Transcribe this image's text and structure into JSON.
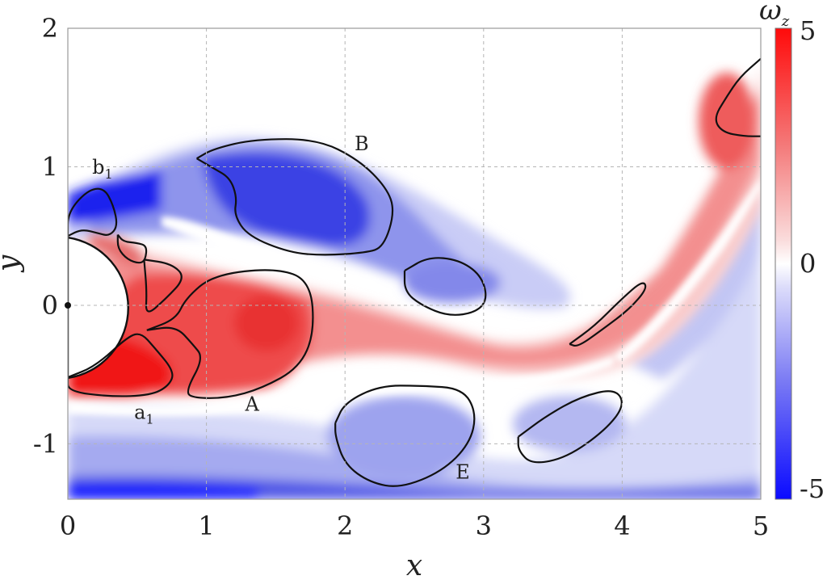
{
  "chart_data": {
    "type": "heatmap",
    "xlabel": "x",
    "ylabel": "y",
    "xlim": [
      0,
      5
    ],
    "ylim": [
      -1.4,
      2
    ],
    "xticks": [
      "0",
      "1",
      "2",
      "3",
      "4",
      "5"
    ],
    "yticks": [
      "-1",
      "0",
      "1",
      "2"
    ],
    "grid": true,
    "colorbar": {
      "label": "ω",
      "label_subscript": "z",
      "range": [
        -5,
        5
      ],
      "ticks": [
        "-5",
        "0",
        "5"
      ],
      "colormap": "blue-white-red",
      "low_color": "#0a0aff",
      "mid_color": "#ffffff",
      "high_color": "#ff0a0a"
    },
    "annotations": [
      {
        "text": "A",
        "x": 1.33,
        "y": -0.76
      },
      {
        "text": "B",
        "x": 2.12,
        "y": 1.12
      },
      {
        "text": "E",
        "x": 2.85,
        "y": -1.25
      },
      {
        "text": "a",
        "sub": "1",
        "x": 0.55,
        "y": -0.82
      },
      {
        "text": "b",
        "sub": "1",
        "x": 0.25,
        "y": 0.95
      }
    ],
    "contours": [
      {
        "name": "A",
        "points": [
          [
            0.57,
            -0.18
          ],
          [
            0.78,
            -0.1
          ],
          [
            0.85,
            0.05
          ],
          [
            1.05,
            0.22
          ],
          [
            1.5,
            0.27
          ],
          [
            1.75,
            0.18
          ],
          [
            1.78,
            -0.2
          ],
          [
            1.67,
            -0.45
          ],
          [
            1.4,
            -0.6
          ],
          [
            1.15,
            -0.67
          ],
          [
            0.9,
            -0.67
          ],
          [
            0.85,
            -0.62
          ],
          [
            0.98,
            -0.38
          ],
          [
            0.9,
            -0.28
          ],
          [
            0.78,
            -0.15
          ],
          [
            0.57,
            -0.18
          ]
        ]
      },
      {
        "name": "B",
        "points": [
          [
            0.93,
            1.06
          ],
          [
            1.05,
            1.13
          ],
          [
            1.35,
            1.2
          ],
          [
            1.8,
            1.2
          ],
          [
            2.1,
            1.05
          ],
          [
            2.3,
            0.85
          ],
          [
            2.36,
            0.68
          ],
          [
            2.28,
            0.42
          ],
          [
            2.15,
            0.38
          ],
          [
            1.85,
            0.36
          ],
          [
            1.6,
            0.38
          ],
          [
            1.3,
            0.5
          ],
          [
            1.2,
            0.65
          ],
          [
            1.22,
            0.78
          ],
          [
            1.17,
            0.92
          ],
          [
            1.05,
            0.99
          ],
          [
            0.93,
            1.06
          ]
        ]
      },
      {
        "name": "a1",
        "points": [
          [
            0.0,
            -0.52
          ],
          [
            0.2,
            -0.44
          ],
          [
            0.44,
            -0.22
          ],
          [
            0.53,
            -0.2
          ],
          [
            0.62,
            -0.3
          ],
          [
            0.77,
            -0.48
          ],
          [
            0.73,
            -0.58
          ],
          [
            0.6,
            -0.65
          ],
          [
            0.3,
            -0.66
          ],
          [
            0.0,
            -0.62
          ],
          [
            0.0,
            -0.52
          ]
        ]
      },
      {
        "name": "b1",
        "points": [
          [
            0.0,
            0.5
          ],
          [
            0.0,
            0.67
          ],
          [
            0.14,
            0.83
          ],
          [
            0.26,
            0.85
          ],
          [
            0.33,
            0.72
          ],
          [
            0.36,
            0.57
          ],
          [
            0.3,
            0.5
          ],
          [
            0.22,
            0.52
          ],
          [
            0.1,
            0.55
          ],
          [
            0.0,
            0.5
          ]
        ]
      },
      {
        "name": "c",
        "points": [
          [
            0.36,
            0.51
          ],
          [
            0.4,
            0.46
          ],
          [
            0.5,
            0.45
          ],
          [
            0.57,
            0.43
          ],
          [
            0.56,
            0.33
          ],
          [
            0.52,
            0.3
          ],
          [
            0.43,
            0.33
          ],
          [
            0.36,
            0.41
          ],
          [
            0.36,
            0.51
          ]
        ]
      },
      {
        "name": "d",
        "points": [
          [
            0.55,
            0.33
          ],
          [
            0.75,
            0.3
          ],
          [
            0.85,
            0.2
          ],
          [
            0.7,
            0.04
          ],
          [
            0.56,
            -0.08
          ],
          [
            0.57,
            0.1
          ],
          [
            0.55,
            0.33
          ]
        ]
      },
      {
        "name": "e",
        "points": [
          [
            2.43,
            0.25
          ],
          [
            2.6,
            0.35
          ],
          [
            2.82,
            0.33
          ],
          [
            2.98,
            0.22
          ],
          [
            3.03,
            0.05
          ],
          [
            2.95,
            -0.05
          ],
          [
            2.75,
            -0.08
          ],
          [
            2.55,
            0.0
          ],
          [
            2.43,
            0.1
          ],
          [
            2.43,
            0.25
          ]
        ]
      },
      {
        "name": "E",
        "points": [
          [
            1.93,
            -0.85
          ],
          [
            2.0,
            -0.7
          ],
          [
            2.25,
            -0.58
          ],
          [
            2.55,
            -0.58
          ],
          [
            2.85,
            -0.6
          ],
          [
            2.95,
            -0.78
          ],
          [
            2.9,
            -1.0
          ],
          [
            2.7,
            -1.2
          ],
          [
            2.4,
            -1.32
          ],
          [
            2.18,
            -1.28
          ],
          [
            2.0,
            -1.15
          ],
          [
            1.93,
            -0.95
          ],
          [
            1.93,
            -0.85
          ]
        ]
      },
      {
        "name": "g",
        "points": [
          [
            3.25,
            -0.95
          ],
          [
            3.45,
            -0.8
          ],
          [
            3.7,
            -0.66
          ],
          [
            3.95,
            -0.6
          ],
          [
            4.02,
            -0.72
          ],
          [
            3.88,
            -0.9
          ],
          [
            3.6,
            -1.1
          ],
          [
            3.35,
            -1.15
          ],
          [
            3.25,
            -1.05
          ],
          [
            3.25,
            -0.95
          ]
        ]
      },
      {
        "name": "f",
        "points": [
          [
            3.62,
            -0.28
          ],
          [
            3.8,
            -0.15
          ],
          [
            4.0,
            0.05
          ],
          [
            4.15,
            0.18
          ],
          [
            4.18,
            0.12
          ],
          [
            4.05,
            -0.03
          ],
          [
            3.85,
            -0.18
          ],
          [
            3.68,
            -0.3
          ],
          [
            3.62,
            -0.28
          ]
        ]
      },
      {
        "name": "h",
        "points": [
          [
            5.0,
            1.78
          ],
          [
            4.85,
            1.65
          ],
          [
            4.75,
            1.5
          ],
          [
            4.66,
            1.35
          ],
          [
            4.72,
            1.25
          ],
          [
            4.88,
            1.22
          ],
          [
            5.0,
            1.22
          ]
        ]
      }
    ]
  }
}
